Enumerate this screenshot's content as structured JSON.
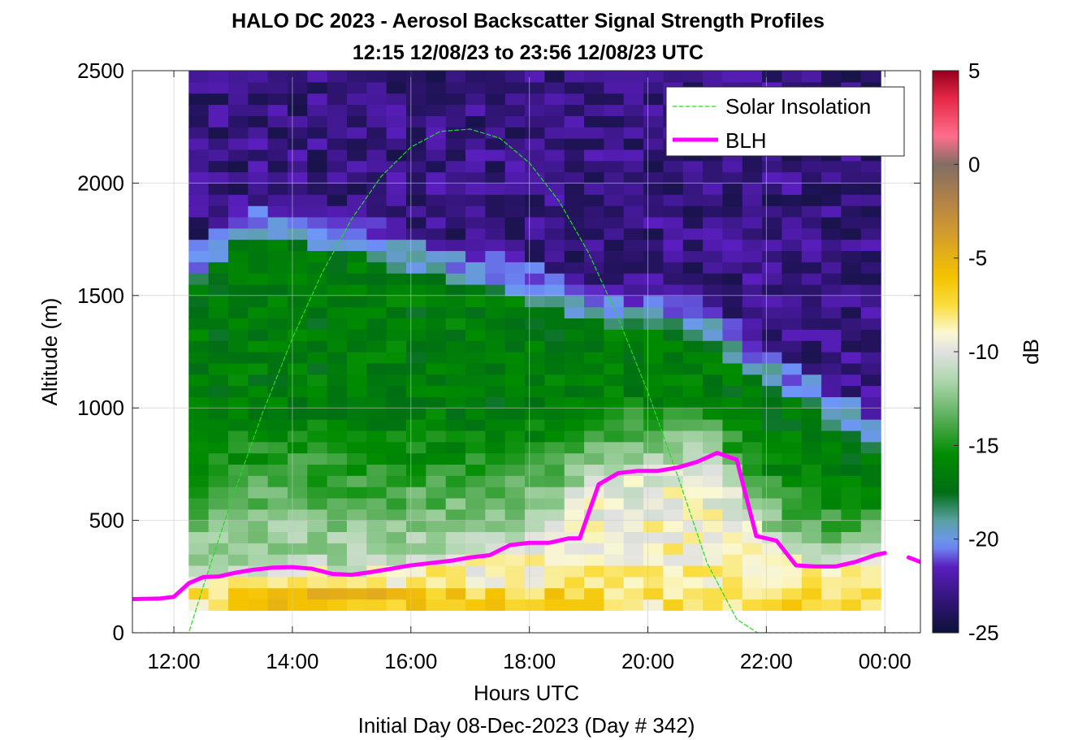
{
  "chart_data": {
    "type": "heatmap",
    "title": "HALO DC 2023 - Aerosol Backscatter Signal Strength Profiles",
    "subtitle": "12:15 12/08/23 to 23:56 12/08/23  UTC",
    "xlabel": "Hours UTC",
    "footer": "Initial Day 08-Dec-2023 (Day # 342)",
    "ylabel": "Altitude (m)",
    "colorbar_label": "dB",
    "xlim": [
      11.3,
      24.6
    ],
    "ylim": [
      0,
      2500
    ],
    "clim": [
      -25,
      5
    ],
    "grid": true,
    "legend_position": "top-right",
    "x_ticks": [
      {
        "value": 12,
        "label": "12:00"
      },
      {
        "value": 14,
        "label": "14:00"
      },
      {
        "value": 16,
        "label": "16:00"
      },
      {
        "value": 18,
        "label": "18:00"
      },
      {
        "value": 20,
        "label": "20:00"
      },
      {
        "value": 22,
        "label": "22:00"
      },
      {
        "value": 24,
        "label": "00:00"
      }
    ],
    "y_ticks": [
      {
        "value": 0,
        "label": "0"
      },
      {
        "value": 500,
        "label": "500"
      },
      {
        "value": 1000,
        "label": "1000"
      },
      {
        "value": 1500,
        "label": "1500"
      },
      {
        "value": 2000,
        "label": "2000"
      },
      {
        "value": 2500,
        "label": "2500"
      }
    ],
    "colorbar_ticks": [
      {
        "value": 5,
        "label": "5"
      },
      {
        "value": 0,
        "label": "0"
      },
      {
        "value": -5,
        "label": "-5"
      },
      {
        "value": -10,
        "label": "-10"
      },
      {
        "value": -15,
        "label": "-15"
      },
      {
        "value": -20,
        "label": "-20"
      },
      {
        "value": -25,
        "label": "-25"
      }
    ],
    "heatmap": {
      "x_start": 12.25,
      "x_end": 23.93,
      "n_columns": 35,
      "y_bin": 50,
      "y_top": 2500,
      "column_profiles": [
        {
          "x": 12.25,
          "blh": 240,
          "aerosol_top": 1620,
          "surface_db": -8
        },
        {
          "x": 13.0,
          "blh": 255,
          "aerosol_top": 1850,
          "surface_db": -7
        },
        {
          "x": 14.0,
          "blh": 290,
          "aerosol_top": 1850,
          "surface_db": -6
        },
        {
          "x": 15.0,
          "blh": 265,
          "aerosol_top": 1810,
          "surface_db": -6
        },
        {
          "x": 16.0,
          "blh": 300,
          "aerosol_top": 1720,
          "surface_db": -6
        },
        {
          "x": 17.0,
          "blh": 335,
          "aerosol_top": 1650,
          "surface_db": -7
        },
        {
          "x": 18.0,
          "blh": 400,
          "aerosol_top": 1600,
          "surface_db": -7
        },
        {
          "x": 19.0,
          "blh": 660,
          "aerosol_top": 1500,
          "surface_db": -7
        },
        {
          "x": 20.0,
          "blh": 720,
          "aerosol_top": 1460,
          "surface_db": -8
        },
        {
          "x": 21.0,
          "blh": 800,
          "aerosol_top": 1420,
          "surface_db": -8
        },
        {
          "x": 22.0,
          "blh": 420,
          "aerosol_top": 1220,
          "surface_db": -7
        },
        {
          "x": 23.0,
          "blh": 290,
          "aerosol_top": 1060,
          "surface_db": -7
        },
        {
          "x": 23.93,
          "blh": 360,
          "aerosol_top": 900,
          "surface_db": -8
        }
      ]
    },
    "series": [
      {
        "name": "Solar Insolation",
        "color": "#22dd22",
        "style": "dashed",
        "x": [
          11.3,
          12.25,
          12.5,
          13.0,
          13.5,
          14.0,
          14.5,
          15.0,
          15.5,
          16.0,
          16.5,
          17.0,
          17.5,
          18.0,
          18.5,
          19.0,
          19.5,
          20.0,
          20.5,
          21.0,
          21.5,
          21.85,
          22.0,
          24.6
        ],
        "y": [
          0,
          0,
          210,
          610,
          980,
          1310,
          1600,
          1840,
          2030,
          2160,
          2230,
          2240,
          2200,
          2090,
          1920,
          1690,
          1400,
          1070,
          700,
          310,
          60,
          0,
          0,
          0
        ]
      },
      {
        "name": "BLH",
        "color": "#ff00ff",
        "style": "solid",
        "x": [
          11.3,
          11.75,
          12.0,
          12.25,
          12.5,
          12.75,
          13.0,
          13.33,
          13.67,
          14.0,
          14.33,
          14.67,
          15.0,
          15.33,
          15.67,
          16.0,
          16.33,
          16.67,
          17.0,
          17.33,
          17.67,
          18.0,
          18.33,
          18.67,
          18.85,
          19.17,
          19.5,
          19.83,
          20.17,
          20.5,
          20.83,
          21.17,
          21.5,
          21.83,
          22.17,
          22.5,
          22.83,
          23.17,
          23.5,
          23.83,
          24.0
        ],
        "y": [
          150,
          152,
          160,
          220,
          248,
          250,
          265,
          280,
          290,
          292,
          285,
          262,
          258,
          270,
          285,
          300,
          310,
          320,
          335,
          345,
          390,
          400,
          400,
          420,
          420,
          660,
          710,
          720,
          720,
          735,
          760,
          800,
          770,
          430,
          410,
          300,
          295,
          295,
          315,
          345,
          355
        ]
      },
      {
        "name": "",
        "color": "#ff00ff",
        "style": "solid",
        "x": [
          24.4,
          24.6
        ],
        "y": [
          335,
          315
        ]
      }
    ]
  }
}
